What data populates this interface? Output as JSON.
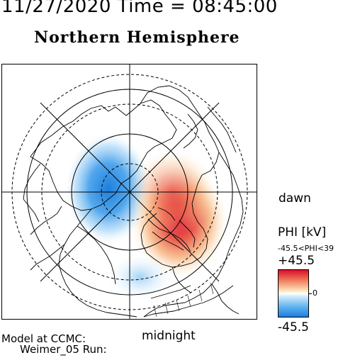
{
  "header": {
    "timestamp": "11/27/2020 Time = 08:45:00",
    "hemisphere": "Northern Hemisphere"
  },
  "map": {
    "labels": {
      "dawn": "dawn",
      "midnight": "midnight"
    },
    "potential_pattern": {
      "min_kv": -45.5,
      "max_kv": 45.5,
      "negative_color": "#1e7fdc",
      "positive_color": "#d8102a"
    }
  },
  "colorbar": {
    "title": "PHI [kV]",
    "range_text": "-45.5<PHI<39",
    "max_label": "+45.5",
    "zero_label": "0",
    "min_label": "-45.5"
  },
  "footer": {
    "model_line1": "Model at CCMC:",
    "model_line2": "Weimer_05 Run:"
  }
}
